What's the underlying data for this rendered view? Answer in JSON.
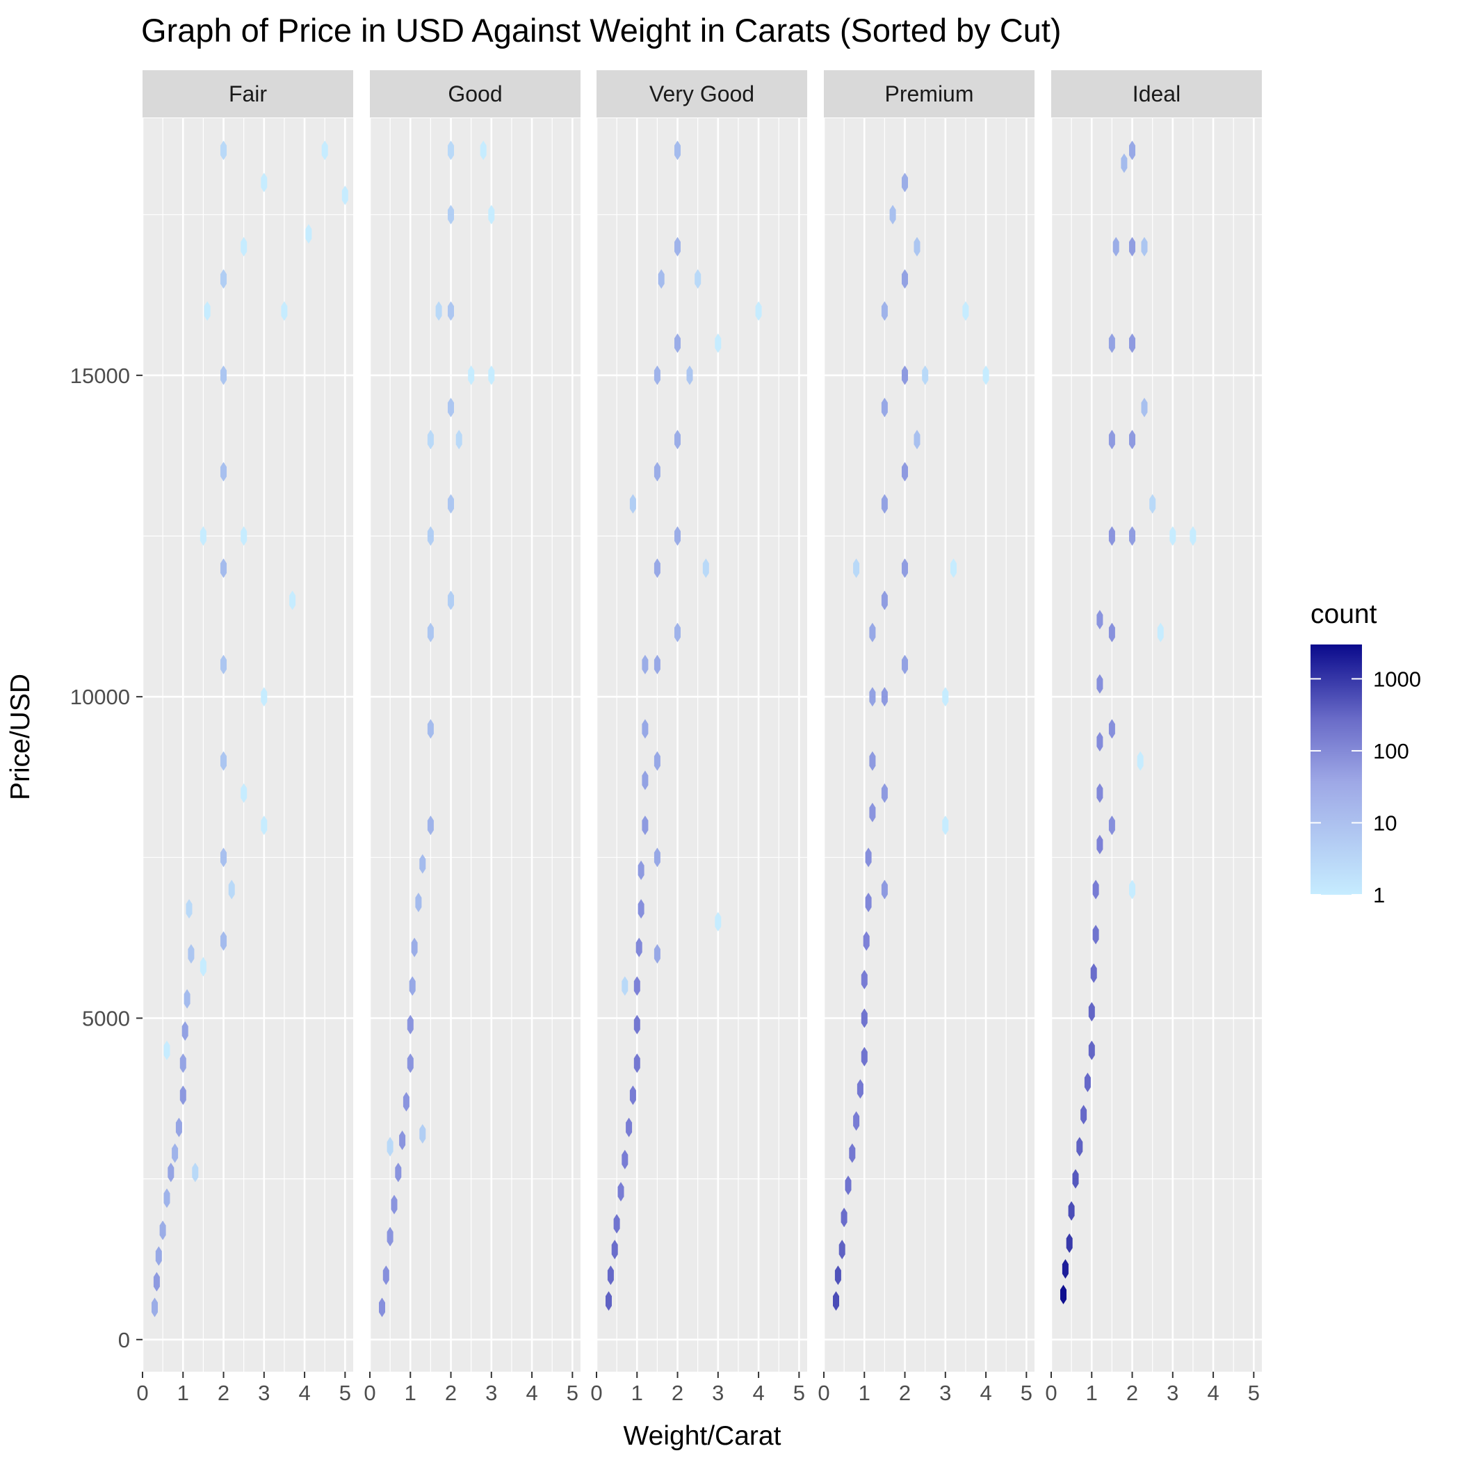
{
  "chart_data": {
    "type": "hexbin",
    "title": "Graph of Price in USD Against Weight in Carats (Sorted by Cut)",
    "xlabel": "Weight/Carat",
    "ylabel": "Price/USD",
    "xlim": [
      0,
      5.2
    ],
    "ylim": [
      -500,
      19000
    ],
    "x_ticks": [
      0,
      1,
      2,
      3,
      4,
      5
    ],
    "y_ticks": [
      0,
      5000,
      10000,
      15000
    ],
    "grid": true,
    "facets": [
      "Fair",
      "Good",
      "Very Good",
      "Premium",
      "Ideal"
    ],
    "legend": {
      "title": "count",
      "position": "right",
      "scale": "log10",
      "range": [
        1,
        3000
      ],
      "breaks": [
        1,
        10,
        100,
        1000
      ],
      "colors": {
        "low": "#c6ecff",
        "mid": "#7b7fd6",
        "high": "#0a0a8c"
      }
    },
    "series": [
      {
        "name": "Fair",
        "points": [
          [
            0.3,
            500,
            10
          ],
          [
            0.35,
            900,
            20
          ],
          [
            0.4,
            1300,
            12
          ],
          [
            0.5,
            1700,
            10
          ],
          [
            0.6,
            2200,
            8
          ],
          [
            0.7,
            2600,
            14
          ],
          [
            0.8,
            2900,
            8
          ],
          [
            0.9,
            3300,
            14
          ],
          [
            1.0,
            3800,
            22
          ],
          [
            1.0,
            4300,
            14
          ],
          [
            1.05,
            4800,
            16
          ],
          [
            1.1,
            5300,
            6
          ],
          [
            1.2,
            6000,
            4
          ],
          [
            1.15,
            6700,
            2
          ],
          [
            0.6,
            4500,
            1
          ],
          [
            1.3,
            2600,
            2
          ],
          [
            1.5,
            5800,
            1
          ],
          [
            1.5,
            12500,
            1
          ],
          [
            1.6,
            16000,
            1
          ],
          [
            2.0,
            6200,
            6
          ],
          [
            2.0,
            7500,
            5
          ],
          [
            2.0,
            9000,
            4
          ],
          [
            2.0,
            10500,
            4
          ],
          [
            2.0,
            12000,
            6
          ],
          [
            2.0,
            13500,
            5
          ],
          [
            2.0,
            15000,
            4
          ],
          [
            2.0,
            16500,
            3
          ],
          [
            2.0,
            18500,
            2
          ],
          [
            2.2,
            7000,
            2
          ],
          [
            2.5,
            8500,
            1
          ],
          [
            2.5,
            12500,
            1
          ],
          [
            2.5,
            17000,
            1
          ],
          [
            3.0,
            18000,
            1
          ],
          [
            3.0,
            10000,
            1
          ],
          [
            3.0,
            8000,
            1
          ],
          [
            3.5,
            16000,
            1
          ],
          [
            3.7,
            11500,
            1
          ],
          [
            4.1,
            17200,
            1
          ],
          [
            4.5,
            18500,
            1
          ],
          [
            5.0,
            17800,
            1
          ]
        ]
      },
      {
        "name": "Good",
        "points": [
          [
            0.3,
            500,
            30
          ],
          [
            0.4,
            1000,
            30
          ],
          [
            0.5,
            1600,
            25
          ],
          [
            0.6,
            2100,
            25
          ],
          [
            0.7,
            2600,
            25
          ],
          [
            0.8,
            3100,
            25
          ],
          [
            0.9,
            3700,
            25
          ],
          [
            1.0,
            4300,
            25
          ],
          [
            1.0,
            4900,
            25
          ],
          [
            1.05,
            5500,
            12
          ],
          [
            1.1,
            6100,
            10
          ],
          [
            1.2,
            6800,
            6
          ],
          [
            1.3,
            7400,
            6
          ],
          [
            1.5,
            8000,
            8
          ],
          [
            1.5,
            9500,
            6
          ],
          [
            1.5,
            11000,
            4
          ],
          [
            1.5,
            12500,
            3
          ],
          [
            1.5,
            14000,
            2
          ],
          [
            1.7,
            16000,
            2
          ],
          [
            2.0,
            11500,
            3
          ],
          [
            2.0,
            13000,
            4
          ],
          [
            2.0,
            14500,
            4
          ],
          [
            2.0,
            16000,
            4
          ],
          [
            2.0,
            17500,
            3
          ],
          [
            2.0,
            18500,
            2
          ],
          [
            2.2,
            14000,
            2
          ],
          [
            2.5,
            15000,
            1
          ],
          [
            2.8,
            18500,
            1
          ],
          [
            3.0,
            15000,
            1
          ],
          [
            3.0,
            17500,
            1
          ],
          [
            1.3,
            3200,
            3
          ],
          [
            0.5,
            3000,
            2
          ]
        ]
      },
      {
        "name": "Very Good",
        "points": [
          [
            0.3,
            600,
            150
          ],
          [
            0.35,
            1000,
            120
          ],
          [
            0.45,
            1400,
            100
          ],
          [
            0.5,
            1800,
            80
          ],
          [
            0.6,
            2300,
            60
          ],
          [
            0.7,
            2800,
            60
          ],
          [
            0.8,
            3300,
            60
          ],
          [
            0.9,
            3800,
            60
          ],
          [
            1.0,
            4300,
            70
          ],
          [
            1.0,
            4900,
            70
          ],
          [
            1.0,
            5500,
            50
          ],
          [
            1.05,
            6100,
            40
          ],
          [
            1.1,
            6700,
            30
          ],
          [
            1.1,
            7300,
            20
          ],
          [
            1.2,
            8000,
            20
          ],
          [
            1.2,
            8700,
            15
          ],
          [
            1.2,
            9500,
            12
          ],
          [
            1.2,
            10500,
            10
          ],
          [
            1.5,
            6000,
            12
          ],
          [
            1.5,
            7500,
            12
          ],
          [
            1.5,
            9000,
            12
          ],
          [
            1.5,
            10500,
            12
          ],
          [
            1.5,
            12000,
            12
          ],
          [
            1.5,
            13500,
            10
          ],
          [
            1.5,
            15000,
            8
          ],
          [
            1.6,
            16500,
            6
          ],
          [
            2.0,
            11000,
            8
          ],
          [
            2.0,
            12500,
            10
          ],
          [
            2.0,
            14000,
            10
          ],
          [
            2.0,
            15500,
            10
          ],
          [
            2.0,
            17000,
            8
          ],
          [
            2.0,
            18500,
            6
          ],
          [
            2.3,
            15000,
            4
          ],
          [
            2.5,
            16500,
            2
          ],
          [
            2.7,
            12000,
            2
          ],
          [
            3.0,
            6500,
            1
          ],
          [
            3.0,
            15500,
            1
          ],
          [
            4.0,
            16000,
            1
          ],
          [
            0.9,
            13000,
            3
          ],
          [
            0.7,
            5500,
            2
          ]
        ]
      },
      {
        "name": "Premium",
        "points": [
          [
            0.3,
            600,
            300
          ],
          [
            0.35,
            1000,
            250
          ],
          [
            0.45,
            1400,
            150
          ],
          [
            0.5,
            1900,
            100
          ],
          [
            0.6,
            2400,
            80
          ],
          [
            0.7,
            2900,
            70
          ],
          [
            0.8,
            3400,
            60
          ],
          [
            0.9,
            3900,
            70
          ],
          [
            1.0,
            4400,
            80
          ],
          [
            1.0,
            5000,
            80
          ],
          [
            1.0,
            5600,
            60
          ],
          [
            1.05,
            6200,
            50
          ],
          [
            1.1,
            6800,
            40
          ],
          [
            1.1,
            7500,
            30
          ],
          [
            1.2,
            8200,
            25
          ],
          [
            1.2,
            9000,
            20
          ],
          [
            1.2,
            10000,
            15
          ],
          [
            1.2,
            11000,
            12
          ],
          [
            1.5,
            7000,
            20
          ],
          [
            1.5,
            8500,
            20
          ],
          [
            1.5,
            10000,
            20
          ],
          [
            1.5,
            11500,
            18
          ],
          [
            1.5,
            13000,
            15
          ],
          [
            1.5,
            14500,
            12
          ],
          [
            1.5,
            16000,
            8
          ],
          [
            1.7,
            17500,
            5
          ],
          [
            2.0,
            10500,
            15
          ],
          [
            2.0,
            12000,
            18
          ],
          [
            2.0,
            13500,
            20
          ],
          [
            2.0,
            15000,
            20
          ],
          [
            2.0,
            16500,
            15
          ],
          [
            2.0,
            18000,
            10
          ],
          [
            2.3,
            14000,
            5
          ],
          [
            2.3,
            17000,
            4
          ],
          [
            2.5,
            15000,
            2
          ],
          [
            3.0,
            8000,
            1
          ],
          [
            3.0,
            10000,
            1
          ],
          [
            3.2,
            12000,
            1
          ],
          [
            3.5,
            16000,
            1
          ],
          [
            4.0,
            15000,
            1
          ],
          [
            0.8,
            12000,
            2
          ]
        ]
      },
      {
        "name": "Ideal",
        "points": [
          [
            0.3,
            700,
            2500
          ],
          [
            0.35,
            1100,
            1500
          ],
          [
            0.45,
            1500,
            600
          ],
          [
            0.5,
            2000,
            300
          ],
          [
            0.6,
            2500,
            200
          ],
          [
            0.7,
            3000,
            150
          ],
          [
            0.8,
            3500,
            120
          ],
          [
            0.9,
            4000,
            120
          ],
          [
            1.0,
            4500,
            130
          ],
          [
            1.0,
            5100,
            130
          ],
          [
            1.05,
            5700,
            100
          ],
          [
            1.1,
            6300,
            80
          ],
          [
            1.1,
            7000,
            60
          ],
          [
            1.2,
            7700,
            50
          ],
          [
            1.2,
            8500,
            40
          ],
          [
            1.2,
            9300,
            35
          ],
          [
            1.2,
            10200,
            30
          ],
          [
            1.2,
            11200,
            25
          ],
          [
            1.5,
            8000,
            30
          ],
          [
            1.5,
            9500,
            30
          ],
          [
            1.5,
            11000,
            28
          ],
          [
            1.5,
            12500,
            25
          ],
          [
            1.5,
            14000,
            20
          ],
          [
            1.5,
            15500,
            15
          ],
          [
            1.6,
            17000,
            10
          ],
          [
            1.8,
            18300,
            6
          ],
          [
            2.0,
            12500,
            18
          ],
          [
            2.0,
            14000,
            20
          ],
          [
            2.0,
            15500,
            20
          ],
          [
            2.0,
            17000,
            18
          ],
          [
            2.0,
            18500,
            12
          ],
          [
            2.3,
            14500,
            5
          ],
          [
            2.3,
            17000,
            4
          ],
          [
            2.5,
            13000,
            2
          ],
          [
            2.7,
            11000,
            1
          ],
          [
            3.0,
            12500,
            1
          ],
          [
            3.5,
            12500,
            1
          ],
          [
            2.2,
            9000,
            1
          ],
          [
            2.0,
            7000,
            1
          ]
        ]
      }
    ]
  }
}
